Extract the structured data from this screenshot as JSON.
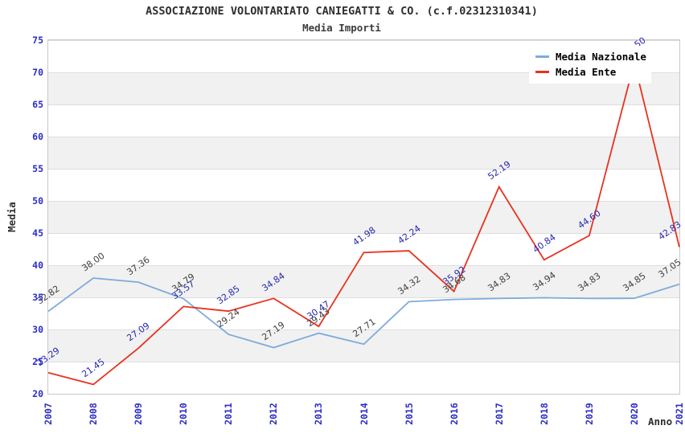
{
  "header": {
    "title": "ASSOCIAZIONE VOLONTARIATO CANIEGATTI & CO. (c.f.02312310341)",
    "subtitle": "Media Importi"
  },
  "chart_data": {
    "type": "line",
    "x": [
      "2007",
      "2008",
      "2009",
      "2010",
      "2011",
      "2012",
      "2013",
      "2014",
      "2015",
      "2016",
      "2017",
      "2018",
      "2019",
      "2020",
      "2021"
    ],
    "xlabel": "Anno",
    "ylabel": "Media",
    "ylim": [
      20,
      75
    ],
    "ytick_step": 5,
    "grid": "horizontal-bands",
    "legend_position": "top-right-inside",
    "point_label_decimals": 2,
    "series": [
      {
        "name": "Media Nazionale",
        "color": "#7dabdb",
        "label_color": "#3f3f3f",
        "values": [
          32.82,
          38.0,
          37.36,
          34.79,
          29.24,
          27.19,
          29.43,
          27.71,
          34.32,
          34.68,
          34.83,
          34.94,
          34.83,
          34.85,
          37.05
        ]
      },
      {
        "name": "Media Ente",
        "color": "#e8321f",
        "label_color": "#2828b0",
        "values": [
          23.29,
          21.45,
          27.09,
          33.57,
          32.85,
          34.84,
          30.47,
          41.98,
          42.24,
          35.92,
          52.19,
          40.84,
          44.6,
          71.5,
          42.83
        ],
        "hidden_label_x": [
          "2020"
        ],
        "hidden_label_reason": "covered by legend box"
      }
    ]
  },
  "colors": {
    "background": "#ffffff",
    "band_gray": "#f1f1f1",
    "grid_line": "#dedede",
    "plot_border": "#c9c9c9",
    "tick_label_blue": "#2d2dc7",
    "title_text": "#2e2e2e",
    "legend_text": "#000000"
  }
}
